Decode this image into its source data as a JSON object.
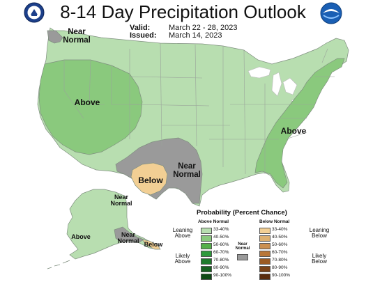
{
  "title": "8-14 Day Precipitation Outlook",
  "valid_label": "Valid:",
  "valid_value": "March 22 - 28, 2023",
  "issued_label": "Issued:",
  "issued_value": "March 14, 2023",
  "colors": {
    "above_33_40": "#b8deb0",
    "above_40_50": "#8ac97d",
    "near_normal": "#9a9a9a",
    "below_33_40": "#f2cf94",
    "water": "#ffffff"
  },
  "map_labels": {
    "pacific_nw": "Near\nNormal",
    "west": "Above",
    "southern_plains": "Near\nNormal",
    "texas": "Below",
    "southeast": "Above",
    "alaska_north": "Near\nNormal",
    "alaska_west": "Above",
    "alaska_south": "Near\nNormal",
    "alaska_panhandle": "Below"
  },
  "legend": {
    "title": "Probability (Percent Chance)",
    "above_header": "Above Normal",
    "below_header": "Below Normal",
    "near_header": "Near\nNormal",
    "leaning_above": "Leaning\nAbove",
    "likely_above": "Likely\nAbove",
    "leaning_below": "Leaning\nBelow",
    "likely_below": "Likely\nBelow",
    "ranges": [
      "33-40%",
      "40-50%",
      "50-60%",
      "60-70%",
      "70-80%",
      "80-90%",
      "90-100%"
    ],
    "above_colors": [
      "#b8deb0",
      "#8ac97d",
      "#55b04a",
      "#2f9a3c",
      "#1f7a2c",
      "#16601f",
      "#0e4a15"
    ],
    "below_colors": [
      "#f2cf94",
      "#ddb070",
      "#cc9050",
      "#b87638",
      "#9a5a24",
      "#7a4218",
      "#5a2c0e"
    ],
    "near_color": "#9a9a9a"
  }
}
